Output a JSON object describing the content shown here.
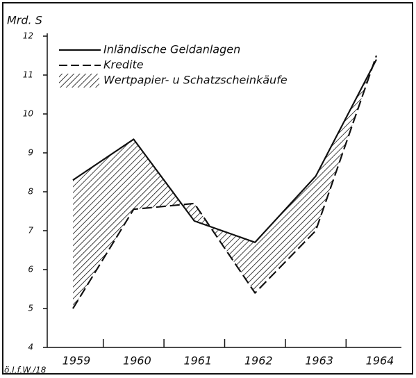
{
  "chart_data": {
    "type": "line",
    "y_label": "Mrd. S",
    "categories": [
      "1959",
      "1960",
      "1961",
      "1962",
      "1963",
      "1964"
    ],
    "series": [
      {
        "name": "Inländische Geldanlagen",
        "color": "#111111",
        "dash": "solid",
        "values": [
          8.3,
          9.35,
          7.25,
          6.7,
          8.4,
          11.4
        ]
      },
      {
        "name": "Kredite",
        "color": "#111111",
        "dash": "dashed",
        "values": [
          5.0,
          7.55,
          7.7,
          5.4,
          7.0,
          11.5
        ]
      }
    ],
    "area_label": "Wertpapier- u Schatzscheinkäufe",
    "ylim": [
      4,
      12
    ],
    "yticks": [
      4,
      5,
      6,
      7,
      8,
      9,
      10,
      11,
      12
    ],
    "source": "ö.I.f.W./18"
  }
}
